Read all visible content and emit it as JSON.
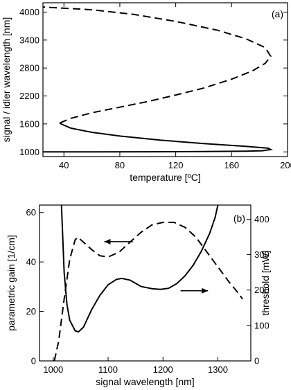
{
  "chart_data": [
    {
      "panel_label": "(a)",
      "type": "line",
      "xlabel": "temperature [ºC]",
      "ylabel": "signal / idler wavelength [nm]",
      "xlim": [
        25,
        200
      ],
      "ylim": [
        900,
        4200
      ],
      "xticks": [
        "40",
        "80",
        "120",
        "160",
        "200"
      ],
      "yticks": [
        "1000",
        "1600",
        "2200",
        "2800",
        "3400",
        "4000"
      ],
      "x_tick_values": [
        40,
        80,
        120,
        160,
        200
      ],
      "y_tick_values": [
        1000,
        1600,
        2200,
        2800,
        3400,
        4000
      ],
      "series": [
        {
          "style": "solid",
          "points": [
            [
              25,
              1000
            ],
            [
              60,
              1001
            ],
            [
              100,
              1003
            ],
            [
              140,
              1007
            ],
            [
              170,
              1014
            ],
            [
              182,
              1025
            ],
            [
              188,
              1050
            ],
            [
              186,
              1080
            ],
            [
              170,
              1120
            ],
            [
              140,
              1180
            ],
            [
              110,
              1250
            ],
            [
              80,
              1340
            ],
            [
              60,
              1420
            ],
            [
              45,
              1510
            ],
            [
              38,
              1600
            ],
            [
              37,
              1620
            ]
          ]
        },
        {
          "style": "dashed",
          "points": [
            [
              37,
              1620
            ],
            [
              45,
              1720
            ],
            [
              60,
              1840
            ],
            [
              80,
              1960
            ],
            [
              100,
              2080
            ],
            [
              120,
              2220
            ],
            [
              140,
              2370
            ],
            [
              160,
              2560
            ],
            [
              175,
              2740
            ],
            [
              184,
              2900
            ],
            [
              188,
              3050
            ],
            [
              184,
              3240
            ],
            [
              170,
              3430
            ],
            [
              150,
              3610
            ],
            [
              120,
              3800
            ],
            [
              90,
              3950
            ],
            [
              60,
              4050
            ],
            [
              30,
              4100
            ],
            [
              25,
              4110
            ]
          ]
        }
      ]
    },
    {
      "panel_label": "(b)",
      "type": "line",
      "xlabel": "signal wavelength [nm]",
      "ylabel": "parametric gain [1/cm]",
      "y2label": "threshold [mW]",
      "xlim": [
        975,
        1360
      ],
      "ylim": [
        0,
        63
      ],
      "y2lim": [
        0,
        440
      ],
      "xticks": [
        "1000",
        "1100",
        "1200",
        "1300"
      ],
      "yticks": [
        "0",
        "20",
        "40",
        "60"
      ],
      "y2ticks": [
        "0",
        "100",
        "200",
        "300",
        "400"
      ],
      "x_tick_values": [
        1000,
        1100,
        1200,
        1300
      ],
      "y_tick_values": [
        0,
        20,
        40,
        60
      ],
      "y2_tick_values": [
        0,
        100,
        200,
        300,
        400
      ],
      "series": [
        {
          "name": "parametric gain",
          "axis": "left",
          "style": "dashed",
          "points": [
            [
              1002,
              0
            ],
            [
              1010,
              8
            ],
            [
              1020,
              25
            ],
            [
              1030,
              41
            ],
            [
              1040,
              49
            ],
            [
              1045,
              50
            ],
            [
              1055,
              48
            ],
            [
              1070,
              45
            ],
            [
              1085,
              42.5
            ],
            [
              1100,
              42
            ],
            [
              1120,
              44
            ],
            [
              1140,
              48
            ],
            [
              1160,
              52
            ],
            [
              1180,
              55
            ],
            [
              1200,
              56
            ],
            [
              1220,
              56
            ],
            [
              1240,
              54
            ],
            [
              1260,
              50
            ],
            [
              1280,
              44
            ],
            [
              1300,
              38
            ],
            [
              1320,
              32
            ],
            [
              1335,
              28
            ],
            [
              1345,
              25
            ]
          ]
        },
        {
          "name": "threshold",
          "axis": "right",
          "style": "solid",
          "points": [
            [
              1015,
              440
            ],
            [
              1020,
              250
            ],
            [
              1025,
              160
            ],
            [
              1030,
              115
            ],
            [
              1040,
              85
            ],
            [
              1046,
              82
            ],
            [
              1055,
              95
            ],
            [
              1070,
              145
            ],
            [
              1085,
              185
            ],
            [
              1100,
              215
            ],
            [
              1115,
              230
            ],
            [
              1125,
              233
            ],
            [
              1140,
              228
            ],
            [
              1160,
              210
            ],
            [
              1180,
              204
            ],
            [
              1195,
              202
            ],
            [
              1210,
              205
            ],
            [
              1225,
              218
            ],
            [
              1240,
              240
            ],
            [
              1255,
              270
            ],
            [
              1270,
              310
            ],
            [
              1285,
              360
            ],
            [
              1295,
              405
            ],
            [
              1300,
              440
            ]
          ]
        }
      ]
    }
  ]
}
